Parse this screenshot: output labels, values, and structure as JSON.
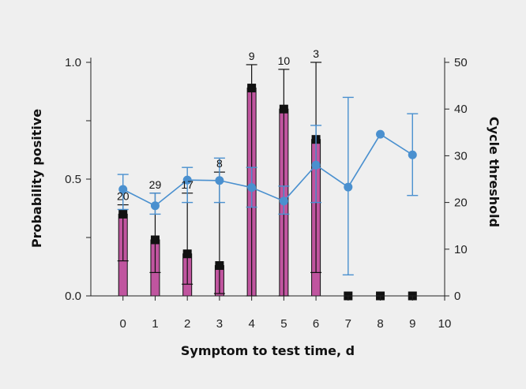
{
  "chart_data": {
    "type": "bar",
    "xlabel": "Symptom to test time, d",
    "ylabel": "Probability positive",
    "y2label": "Cycle threshold",
    "xlim": [
      -1,
      10
    ],
    "ylim": [
      0,
      1.0
    ],
    "y2lim": [
      0,
      50
    ],
    "x_ticks": [
      0,
      1,
      2,
      3,
      4,
      5,
      6,
      7,
      8,
      9,
      10
    ],
    "y_ticks": [
      "0.0",
      "0.5",
      "1.0"
    ],
    "y_tick_values": [
      0,
      0.5,
      1.0
    ],
    "y2_ticks": [
      0,
      10,
      20,
      30,
      40,
      50
    ],
    "grid": false,
    "bar_color": "#c0559f",
    "marker_color": "#111111",
    "line_color": "#4a90cf",
    "probability_positive": {
      "x": [
        0,
        1,
        2,
        3,
        4,
        5,
        6,
        7,
        8,
        9
      ],
      "values": [
        0.35,
        0.24,
        0.18,
        0.13,
        0.89,
        0.8,
        0.67,
        0.0,
        0.0,
        0.0
      ],
      "ci_low": [
        0.15,
        0.1,
        0.05,
        0.01,
        0.0,
        0.0,
        0.1,
        null,
        null,
        null
      ],
      "ci_high": [
        0.39,
        0.44,
        0.44,
        0.53,
        0.99,
        0.97,
        1.0,
        null,
        null,
        null
      ],
      "n": [
        20,
        29,
        17,
        8,
        9,
        10,
        3,
        null,
        null,
        null
      ],
      "n_labels": [
        "20",
        "29",
        "17",
        "8",
        "9",
        "10",
        "3"
      ]
    },
    "cycle_threshold": {
      "x": [
        0,
        1,
        2,
        3,
        4,
        5,
        6,
        7,
        8,
        9
      ],
      "values": [
        22.8,
        19.3,
        24.8,
        24.7,
        23.2,
        20.3,
        28.0,
        23.3,
        34.6,
        30.2
      ],
      "err_low": [
        18.5,
        17.5,
        20.0,
        20.0,
        19.0,
        17.5,
        20.0,
        4.5,
        null,
        21.5
      ],
      "err_high": [
        26.0,
        22.0,
        27.5,
        29.5,
        27.5,
        23.5,
        36.5,
        42.5,
        null,
        39.0
      ]
    }
  }
}
